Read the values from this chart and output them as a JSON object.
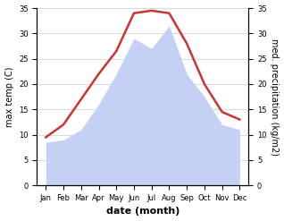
{
  "months": [
    "Jan",
    "Feb",
    "Mar",
    "Apr",
    "May",
    "Jun",
    "Jul",
    "Aug",
    "Sep",
    "Oct",
    "Nov",
    "Dec"
  ],
  "temp": [
    9.5,
    12.0,
    17.0,
    22.0,
    26.5,
    34.0,
    34.5,
    34.0,
    28.0,
    20.0,
    14.5,
    13.0
  ],
  "precip": [
    8.5,
    9.0,
    11.0,
    16.0,
    22.0,
    29.0,
    27.0,
    31.5,
    22.0,
    17.5,
    12.0,
    11.0
  ],
  "temp_color": "#cc3333",
  "precip_fill_color": "#c5d0f5",
  "ylim": [
    0,
    35
  ],
  "ylabel_left": "max temp (C)",
  "ylabel_right": "med. precipitation (kg/m2)",
  "xlabel": "date (month)",
  "yticks": [
    0,
    5,
    10,
    15,
    20,
    25,
    30,
    35
  ],
  "background_color": "#ffffff",
  "grid_color": "#cccccc",
  "temp_linewidth": 1.8
}
